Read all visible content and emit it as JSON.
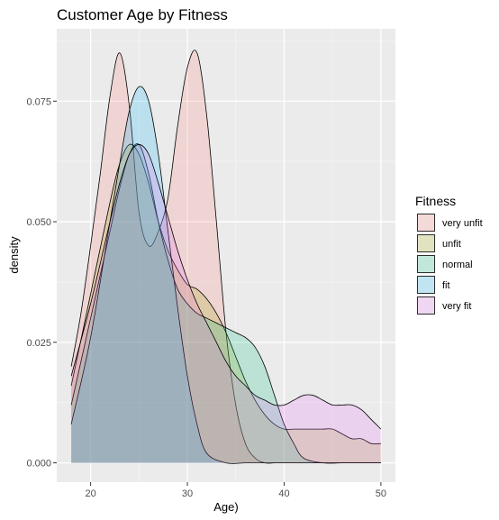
{
  "chart_data": {
    "type": "area",
    "title": "Customer Age by Fitness",
    "xlabel": "Age)",
    "ylabel": "density",
    "xlim": [
      16.5,
      51.5
    ],
    "ylim": [
      -0.004,
      0.09
    ],
    "x_ticks": [
      20,
      30,
      40,
      50
    ],
    "y_ticks": [
      0.0,
      0.025,
      0.05,
      0.075
    ],
    "x_tick_labels": [
      "20",
      "30",
      "40",
      "50"
    ],
    "y_tick_labels": [
      "0.000",
      "0.025",
      "0.050",
      "0.075"
    ],
    "grid": true,
    "legend": {
      "title": "Fitness",
      "position": "right"
    },
    "series": [
      {
        "name": "very unfit",
        "fill": "#F8766D",
        "points": [
          [
            18,
            0.02
          ],
          [
            19,
            0.031
          ],
          [
            20,
            0.045
          ],
          [
            21,
            0.06
          ],
          [
            22,
            0.076
          ],
          [
            23,
            0.085
          ],
          [
            24,
            0.074
          ],
          [
            25,
            0.052
          ],
          [
            26,
            0.045
          ],
          [
            27,
            0.048
          ],
          [
            28,
            0.055
          ],
          [
            29,
            0.07
          ],
          [
            30,
            0.082
          ],
          [
            31,
            0.085
          ],
          [
            32,
            0.072
          ],
          [
            33,
            0.05
          ],
          [
            34,
            0.027
          ],
          [
            35,
            0.012
          ],
          [
            36,
            0.004
          ],
          [
            37,
            0.001
          ],
          [
            38,
            0.0
          ],
          [
            39,
            0.0
          ],
          [
            40,
            0.0
          ],
          [
            42,
            0.0
          ],
          [
            44,
            0.0
          ],
          [
            46,
            0.0
          ],
          [
            48,
            0.0
          ],
          [
            50,
            0.0
          ]
        ]
      },
      {
        "name": "unfit",
        "fill": "#A3A500",
        "points": [
          [
            18,
            0.016
          ],
          [
            20,
            0.035
          ],
          [
            22,
            0.054
          ],
          [
            23,
            0.062
          ],
          [
            24,
            0.066
          ],
          [
            25,
            0.064
          ],
          [
            26,
            0.058
          ],
          [
            27,
            0.05
          ],
          [
            28,
            0.044
          ],
          [
            29,
            0.04
          ],
          [
            30,
            0.037
          ],
          [
            31,
            0.036
          ],
          [
            32,
            0.034
          ],
          [
            33,
            0.031
          ],
          [
            34,
            0.027
          ],
          [
            35,
            0.022
          ],
          [
            36,
            0.017
          ],
          [
            37,
            0.013
          ],
          [
            38,
            0.01
          ],
          [
            39,
            0.008
          ],
          [
            40,
            0.007
          ],
          [
            41,
            0.007
          ],
          [
            42,
            0.007
          ],
          [
            43,
            0.007
          ],
          [
            44,
            0.007
          ],
          [
            45,
            0.007
          ],
          [
            46,
            0.006
          ],
          [
            47,
            0.005
          ],
          [
            48,
            0.005
          ],
          [
            49,
            0.004
          ],
          [
            50,
            0.004
          ]
        ]
      },
      {
        "name": "normal",
        "fill": "#00BF7D",
        "points": [
          [
            18,
            0.012
          ],
          [
            20,
            0.03
          ],
          [
            22,
            0.048
          ],
          [
            23,
            0.057
          ],
          [
            24,
            0.064
          ],
          [
            25,
            0.066
          ],
          [
            26,
            0.06
          ],
          [
            27,
            0.05
          ],
          [
            28,
            0.042
          ],
          [
            29,
            0.036
          ],
          [
            30,
            0.033
          ],
          [
            31,
            0.031
          ],
          [
            32,
            0.03
          ],
          [
            33,
            0.029
          ],
          [
            34,
            0.028
          ],
          [
            35,
            0.027
          ],
          [
            36,
            0.026
          ],
          [
            37,
            0.024
          ],
          [
            38,
            0.02
          ],
          [
            39,
            0.014
          ],
          [
            40,
            0.008
          ],
          [
            41,
            0.004
          ],
          [
            42,
            0.001
          ],
          [
            44,
            0.0
          ],
          [
            46,
            0.0
          ],
          [
            48,
            0.0
          ],
          [
            50,
            0.0
          ]
        ]
      },
      {
        "name": "fit",
        "fill": "#00B0F6",
        "points": [
          [
            18,
            0.008
          ],
          [
            20,
            0.026
          ],
          [
            22,
            0.05
          ],
          [
            23,
            0.062
          ],
          [
            24,
            0.073
          ],
          [
            25,
            0.078
          ],
          [
            26,
            0.075
          ],
          [
            27,
            0.064
          ],
          [
            28,
            0.048
          ],
          [
            29,
            0.032
          ],
          [
            30,
            0.018
          ],
          [
            31,
            0.008
          ],
          [
            32,
            0.002
          ],
          [
            34,
            0.0
          ],
          [
            36,
            0.0
          ],
          [
            38,
            0.0
          ],
          [
            40,
            0.0
          ],
          [
            42,
            0.0
          ],
          [
            44,
            0.0
          ],
          [
            46,
            0.0
          ],
          [
            48,
            0.0
          ],
          [
            50,
            0.0
          ]
        ]
      },
      {
        "name": "very fit",
        "fill": "#E76BF3",
        "points": [
          [
            18,
            0.018
          ],
          [
            20,
            0.033
          ],
          [
            22,
            0.05
          ],
          [
            23,
            0.058
          ],
          [
            24,
            0.064
          ],
          [
            25,
            0.066
          ],
          [
            26,
            0.064
          ],
          [
            27,
            0.058
          ],
          [
            28,
            0.051
          ],
          [
            29,
            0.044
          ],
          [
            30,
            0.038
          ],
          [
            31,
            0.033
          ],
          [
            32,
            0.029
          ],
          [
            33,
            0.025
          ],
          [
            34,
            0.021
          ],
          [
            35,
            0.018
          ],
          [
            36,
            0.016
          ],
          [
            37,
            0.014
          ],
          [
            38,
            0.013
          ],
          [
            39,
            0.012
          ],
          [
            40,
            0.012
          ],
          [
            41,
            0.013
          ],
          [
            42,
            0.014
          ],
          [
            43,
            0.014
          ],
          [
            44,
            0.013
          ],
          [
            45,
            0.012
          ],
          [
            46,
            0.012
          ],
          [
            47,
            0.012
          ],
          [
            48,
            0.011
          ],
          [
            49,
            0.009
          ],
          [
            50,
            0.007
          ]
        ]
      }
    ]
  }
}
